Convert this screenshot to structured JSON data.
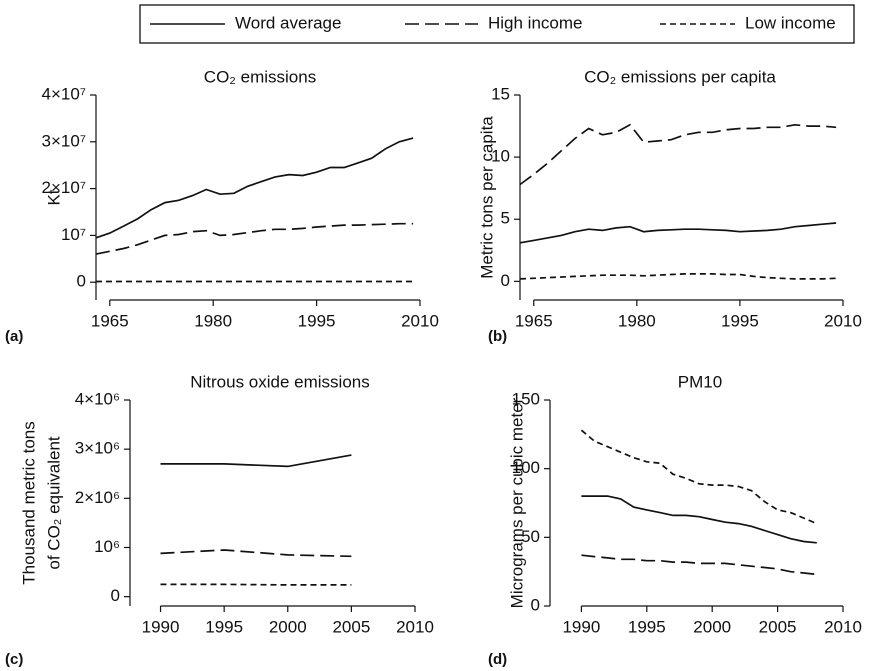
{
  "legend": [
    {
      "name": "Word average",
      "dash": []
    },
    {
      "name": "High income",
      "dash": [
        14,
        6
      ]
    },
    {
      "name": "Low income",
      "dash": [
        6,
        4
      ]
    }
  ],
  "chart_data": [
    {
      "type": "line",
      "panel_label": "(a)",
      "title": "CO₂ emissions",
      "y_label": "Kt",
      "x": [
        1963,
        1965,
        1967,
        1969,
        1971,
        1973,
        1975,
        1977,
        1979,
        1981,
        1983,
        1985,
        1987,
        1989,
        1991,
        1993,
        1995,
        1997,
        1999,
        2001,
        2003,
        2005,
        2007,
        2009
      ],
      "series": [
        {
          "values": [
            9500000,
            10500000,
            12000000,
            13500000,
            15500000,
            17000000,
            17500000,
            18500000,
            19800000,
            18800000,
            19000000,
            20500000,
            21500000,
            22500000,
            23000000,
            22800000,
            23500000,
            24500000,
            24500000,
            25500000,
            26500000,
            28500000,
            30000000,
            30800000
          ]
        },
        {
          "values": [
            6000000,
            6600000,
            7200000,
            8000000,
            9000000,
            10000000,
            10200000,
            10800000,
            11000000,
            10000000,
            10200000,
            10600000,
            11000000,
            11300000,
            11300000,
            11500000,
            11800000,
            12000000,
            12200000,
            12200000,
            12300000,
            12400000,
            12500000,
            12500000
          ]
        },
        {
          "values": [
            150000,
            150000,
            150000,
            150000,
            150000,
            150000,
            150000,
            150000,
            150000,
            150000,
            150000,
            150000,
            150000,
            150000,
            150000,
            150000,
            150000,
            150000,
            150000,
            150000,
            150000,
            150000,
            150000,
            150000
          ]
        }
      ],
      "xlim": [
        1963,
        2010
      ],
      "xticks": [
        1965,
        1980,
        1995,
        2010
      ],
      "ylim": [
        -3800000,
        40000000
      ],
      "yticks": [
        {
          "value": 0,
          "label": "0"
        },
        {
          "value": 10000000,
          "label": "10⁷"
        },
        {
          "value": 20000000,
          "label": "2×10⁷"
        },
        {
          "value": 30000000,
          "label": "3×10⁷"
        },
        {
          "value": 40000000,
          "label": "4×10⁷"
        }
      ]
    },
    {
      "type": "line",
      "panel_label": "(b)",
      "title": "CO₂ emissions per capita",
      "y_label": "Metric tons per capita",
      "x": [
        1963,
        1965,
        1967,
        1969,
        1971,
        1973,
        1975,
        1977,
        1979,
        1981,
        1983,
        1985,
        1987,
        1989,
        1991,
        1993,
        1995,
        1997,
        1999,
        2001,
        2003,
        2005,
        2007,
        2009
      ],
      "series": [
        {
          "values": [
            3.1,
            3.3,
            3.5,
            3.7,
            4.0,
            4.2,
            4.1,
            4.3,
            4.4,
            4.0,
            4.1,
            4.15,
            4.2,
            4.2,
            4.15,
            4.1,
            4.0,
            4.05,
            4.1,
            4.2,
            4.4,
            4.5,
            4.6,
            4.7
          ]
        },
        {
          "values": [
            7.8,
            8.6,
            9.5,
            10.5,
            11.5,
            12.3,
            11.8,
            12.0,
            12.6,
            11.2,
            11.3,
            11.4,
            11.8,
            12.0,
            12.0,
            12.2,
            12.3,
            12.3,
            12.4,
            12.4,
            12.6,
            12.5,
            12.5,
            12.4
          ]
        },
        {
          "values": [
            0.2,
            0.25,
            0.3,
            0.35,
            0.4,
            0.45,
            0.5,
            0.5,
            0.5,
            0.45,
            0.5,
            0.55,
            0.6,
            0.6,
            0.6,
            0.55,
            0.55,
            0.4,
            0.3,
            0.25,
            0.2,
            0.2,
            0.2,
            0.25
          ]
        }
      ],
      "xlim": [
        1963,
        2010
      ],
      "xticks": [
        1965,
        1980,
        1995,
        2010
      ],
      "ylim": [
        -1.5,
        15
      ],
      "yticks": [
        0,
        5,
        10,
        15
      ]
    },
    {
      "type": "line",
      "panel_label": "(c)",
      "title": "Nitrous oxide emissions",
      "y_label": [
        "Thousand metric tons",
        "of CO₂ equivalent"
      ],
      "x": [
        1990,
        1995,
        2000,
        2005
      ],
      "series": [
        {
          "values": [
            2700000,
            2700000,
            2650000,
            2880000
          ]
        },
        {
          "values": [
            880000,
            950000,
            850000,
            820000
          ]
        },
        {
          "values": [
            250000,
            250000,
            240000,
            240000
          ]
        }
      ],
      "xlim": [
        1987.6,
        2010
      ],
      "xticks": [
        1990,
        1995,
        2000,
        2005,
        2010
      ],
      "ylim": [
        -190000,
        4000000
      ],
      "yticks": [
        {
          "value": 0,
          "label": "0"
        },
        {
          "value": 1000000,
          "label": "10⁶"
        },
        {
          "value": 2000000,
          "label": "2×10⁶"
        },
        {
          "value": 3000000,
          "label": "3×10⁶"
        },
        {
          "value": 4000000,
          "label": "4×10⁶"
        }
      ]
    },
    {
      "type": "line",
      "panel_label": "(d)",
      "title": "PM10",
      "y_label": "Micrograms per cubic meter",
      "x": [
        1990,
        1991,
        1992,
        1993,
        1994,
        1995,
        1996,
        1997,
        1998,
        1999,
        2000,
        2001,
        2002,
        2003,
        2004,
        2005,
        2006,
        2007,
        2008
      ],
      "series": [
        {
          "values": [
            80,
            80,
            80,
            78,
            72,
            70,
            68,
            66,
            66,
            65,
            63,
            61,
            60,
            58,
            55,
            52,
            49,
            47,
            46
          ]
        },
        {
          "values": [
            37,
            36,
            35,
            34,
            34,
            33,
            33,
            32,
            32,
            31,
            31,
            31,
            30,
            29,
            28,
            27,
            25,
            24,
            23
          ]
        },
        {
          "values": [
            128,
            120,
            116,
            112,
            108,
            105,
            104,
            96,
            93,
            89,
            88,
            88,
            87,
            84,
            76,
            70,
            68,
            64,
            60
          ]
        }
      ],
      "xlim": [
        1987.6,
        2010
      ],
      "xticks": [
        1990,
        1995,
        2000,
        2005,
        2010
      ],
      "ylim": [
        0,
        150
      ],
      "yticks": [
        0,
        50,
        100,
        150
      ]
    }
  ]
}
